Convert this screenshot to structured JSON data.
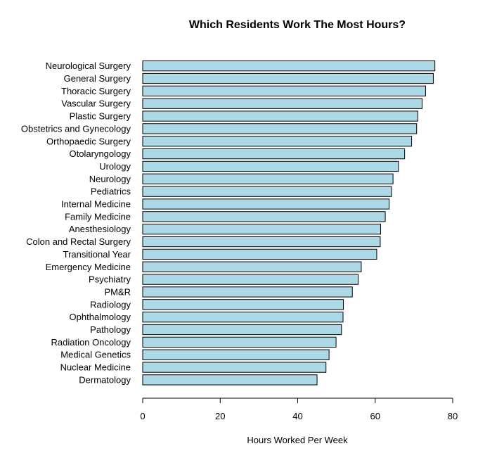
{
  "chart_data": {
    "type": "bar",
    "orientation": "horizontal",
    "title": "Which Residents Work The Most Hours?",
    "xlabel": "Hours Worked Per Week",
    "ylabel": "",
    "xlim": [
      0,
      80
    ],
    "x_ticks": [
      0,
      20,
      40,
      60,
      80
    ],
    "grid": false,
    "bar_color": "#add8e6",
    "categories": [
      "Neurological Surgery",
      "General Surgery",
      "Thoracic Surgery",
      "Vascular Surgery",
      "Plastic Surgery",
      "Obstetrics and Gynecology",
      "Orthopaedic Surgery",
      "Otolaryngology",
      "Urology",
      "Neurology",
      "Pediatrics",
      "Internal Medicine",
      "Family Medicine",
      "Anesthesiology",
      "Colon and Rectal Surgery",
      "Transitional Year",
      "Emergency Medicine",
      "Psychiatry",
      "PM&R",
      "Radiology",
      "Ophthalmology",
      "Pathology",
      "Radiation Oncology",
      "Medical Genetics",
      "Nuclear Medicine",
      "Dermatology"
    ],
    "values": [
      75.4,
      75.0,
      73.0,
      72.1,
      71.0,
      70.7,
      69.4,
      67.6,
      66.0,
      64.6,
      64.2,
      63.6,
      62.6,
      61.4,
      61.3,
      60.4,
      56.4,
      55.6,
      54.1,
      51.8,
      51.7,
      51.3,
      49.9,
      48.1,
      47.3,
      45.0
    ]
  }
}
